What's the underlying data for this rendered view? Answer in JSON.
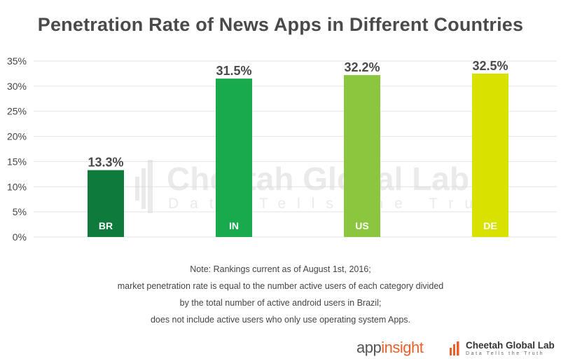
{
  "chart_data": {
    "type": "bar",
    "title": "Penetration Rate of News Apps in Different Countries",
    "categories": [
      "BR",
      "IN",
      "US",
      "DE"
    ],
    "values": [
      13.3,
      31.5,
      32.2,
      32.5
    ],
    "value_labels": [
      "13.3%",
      "31.5%",
      "32.2%",
      "32.5%"
    ],
    "colors": [
      "#0e7a3c",
      "#19ab4b",
      "#8cc63f",
      "#d9e100"
    ],
    "ylim": [
      0,
      35
    ],
    "yticks": [
      0,
      5,
      10,
      15,
      20,
      25,
      30,
      35
    ],
    "ytick_labels": [
      "0%",
      "5%",
      "10%",
      "15%",
      "20%",
      "25%",
      "30%",
      "35%"
    ],
    "xlabel": "",
    "ylabel": "",
    "grid": true,
    "legend": "none"
  },
  "watermark": {
    "name": "Cheetah Global Lab",
    "tagline": "Data Tells the Truth"
  },
  "notes": [
    "Note: Rankings current as of August 1st, 2016;",
    "market penetration rate is equal to the number active users of each category divided",
    "by the total number of active android users in Brazil;",
    "does not include active users who only use operating system Apps."
  ],
  "logos": {
    "appinsight_prefix": "app",
    "appinsight_suffix": "insight",
    "cheetah_name": "Cheetah Global Lab",
    "cheetah_tagline": "Data Tells the Truth"
  },
  "colors": {
    "accent_orange": "#e8602c",
    "text_dark": "#4a4a4a"
  }
}
